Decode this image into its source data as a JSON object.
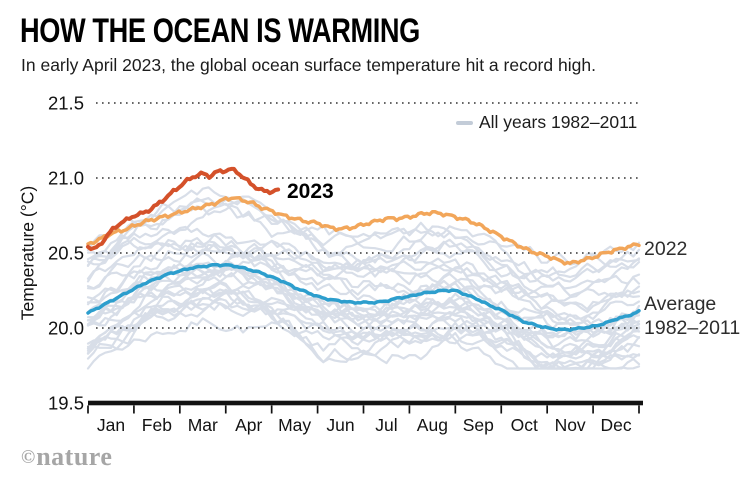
{
  "header": {
    "title": "HOW THE OCEAN IS WARMING",
    "subtitle": "In early April 2023, the global ocean surface temperature hit a record high."
  },
  "legend": {
    "label": "All years 1982–2011"
  },
  "annotations": {
    "label_2023": "2023",
    "label_2022": "2022",
    "label_avg_1": "Average",
    "label_avg_2": "1982–2011"
  },
  "footer": {
    "copyright": "©",
    "brand": "nature"
  },
  "colors": {
    "line_2023": "#d4512a",
    "line_2022": "#f2a65a",
    "line_avg": "#2d9ecd",
    "all_years": "#d8dee8",
    "legend_swatch": "#c3ccd8",
    "grid_dots": "#333333",
    "axis": "#121212",
    "text": "#131313"
  },
  "chart_data": {
    "type": "line",
    "title": "HOW THE OCEAN IS WARMING",
    "subtitle": "In early April 2023, the global ocean surface temperature hit a record high.",
    "xlabel": "",
    "ylabel": "Temperature (°C)",
    "x_unit": "month of year (0 = 1 Jan, 12 = 31 Dec)",
    "xlim": [
      0,
      12
    ],
    "ylim": [
      19.5,
      21.5
    ],
    "yticks": [
      21.5,
      21.0,
      20.5,
      20.0,
      19.5
    ],
    "ytick_labels": [
      "21.5",
      "21.0",
      "20.5",
      "20.0",
      "19.5"
    ],
    "x_months": [
      "Jan",
      "Feb",
      "Mar",
      "Apr",
      "May",
      "Jun",
      "Jul",
      "Aug",
      "Sep",
      "Oct",
      "Nov",
      "Dec"
    ],
    "grid": "horizontal dotted lines at each 0.5 °C; bold solid baseline at 19.5",
    "legend_position": "top-right inside plot",
    "series": [
      {
        "name": "Average 1982–2011",
        "color": "#2d9ecd",
        "width": 3.5,
        "points": [
          [
            0,
            20.1
          ],
          [
            0.25,
            20.14
          ],
          [
            0.5,
            20.18
          ],
          [
            0.75,
            20.22
          ],
          [
            1.0,
            20.26
          ],
          [
            1.25,
            20.3
          ],
          [
            1.5,
            20.33
          ],
          [
            1.75,
            20.36
          ],
          [
            2.0,
            20.38
          ],
          [
            2.25,
            20.4
          ],
          [
            2.5,
            20.41
          ],
          [
            2.75,
            20.42
          ],
          [
            3.0,
            20.42
          ],
          [
            3.25,
            20.41
          ],
          [
            3.5,
            20.39
          ],
          [
            3.75,
            20.37
          ],
          [
            4.0,
            20.34
          ],
          [
            4.25,
            20.31
          ],
          [
            4.5,
            20.27
          ],
          [
            4.75,
            20.24
          ],
          [
            5.0,
            20.21
          ],
          [
            5.25,
            20.19
          ],
          [
            5.5,
            20.18
          ],
          [
            5.75,
            20.17
          ],
          [
            6.0,
            20.17
          ],
          [
            6.25,
            20.17
          ],
          [
            6.5,
            20.18
          ],
          [
            6.75,
            20.2
          ],
          [
            7.0,
            20.21
          ],
          [
            7.25,
            20.23
          ],
          [
            7.5,
            20.24
          ],
          [
            7.75,
            20.25
          ],
          [
            8.0,
            20.25
          ],
          [
            8.25,
            20.22
          ],
          [
            8.5,
            20.19
          ],
          [
            8.75,
            20.15
          ],
          [
            9.0,
            20.12
          ],
          [
            9.25,
            20.08
          ],
          [
            9.5,
            20.04
          ],
          [
            9.75,
            20.02
          ],
          [
            10.0,
            20.0
          ],
          [
            10.25,
            19.99
          ],
          [
            10.5,
            19.99
          ],
          [
            10.75,
            20.0
          ],
          [
            11.0,
            20.01
          ],
          [
            11.25,
            20.03
          ],
          [
            11.5,
            20.06
          ],
          [
            11.75,
            20.08
          ],
          [
            12,
            20.11
          ]
        ]
      },
      {
        "name": "2022",
        "color": "#f2a65a",
        "width": 3.5,
        "points": [
          [
            0,
            20.56
          ],
          [
            0.25,
            20.59
          ],
          [
            0.5,
            20.63
          ],
          [
            0.75,
            20.65
          ],
          [
            1.0,
            20.68
          ],
          [
            1.25,
            20.71
          ],
          [
            1.5,
            20.73
          ],
          [
            1.75,
            20.75
          ],
          [
            2.0,
            20.77
          ],
          [
            2.25,
            20.79
          ],
          [
            2.5,
            20.81
          ],
          [
            2.75,
            20.83
          ],
          [
            3.0,
            20.86
          ],
          [
            3.15,
            20.87
          ],
          [
            3.4,
            20.85
          ],
          [
            3.6,
            20.83
          ],
          [
            3.8,
            20.8
          ],
          [
            4.0,
            20.78
          ],
          [
            4.25,
            20.75
          ],
          [
            4.5,
            20.73
          ],
          [
            4.75,
            20.71
          ],
          [
            5.0,
            20.7
          ],
          [
            5.25,
            20.67
          ],
          [
            5.5,
            20.66
          ],
          [
            5.75,
            20.67
          ],
          [
            6.0,
            20.69
          ],
          [
            6.25,
            20.71
          ],
          [
            6.5,
            20.73
          ],
          [
            6.75,
            20.73
          ],
          [
            7.0,
            20.74
          ],
          [
            7.25,
            20.76
          ],
          [
            7.5,
            20.77
          ],
          [
            7.75,
            20.76
          ],
          [
            8.0,
            20.74
          ],
          [
            8.25,
            20.72
          ],
          [
            8.5,
            20.69
          ],
          [
            8.75,
            20.65
          ],
          [
            9.0,
            20.61
          ],
          [
            9.25,
            20.57
          ],
          [
            9.5,
            20.53
          ],
          [
            9.75,
            20.5
          ],
          [
            10.0,
            20.48
          ],
          [
            10.25,
            20.45
          ],
          [
            10.5,
            20.43
          ],
          [
            10.75,
            20.45
          ],
          [
            11.0,
            20.47
          ],
          [
            11.25,
            20.5
          ],
          [
            11.5,
            20.52
          ],
          [
            11.75,
            20.54
          ],
          [
            12,
            20.56
          ]
        ]
      },
      {
        "name": "2023",
        "color": "#d4512a",
        "width": 4,
        "points": [
          [
            0,
            20.55
          ],
          [
            0.1,
            20.52
          ],
          [
            0.25,
            20.55
          ],
          [
            0.4,
            20.61
          ],
          [
            0.55,
            20.66
          ],
          [
            0.7,
            20.7
          ],
          [
            0.85,
            20.72
          ],
          [
            1.0,
            20.75
          ],
          [
            1.15,
            20.76
          ],
          [
            1.3,
            20.78
          ],
          [
            1.5,
            20.82
          ],
          [
            1.7,
            20.87
          ],
          [
            1.9,
            20.92
          ],
          [
            2.1,
            20.97
          ],
          [
            2.3,
            21.01
          ],
          [
            2.5,
            21.03
          ],
          [
            2.65,
            21.01
          ],
          [
            2.8,
            21.04
          ],
          [
            3.0,
            21.05
          ],
          [
            3.1,
            21.06
          ],
          [
            3.25,
            21.04
          ],
          [
            3.4,
            21.0
          ],
          [
            3.55,
            20.96
          ],
          [
            3.7,
            20.93
          ],
          [
            3.85,
            20.91
          ],
          [
            4.0,
            20.91
          ],
          [
            4.15,
            20.92
          ]
        ]
      }
    ],
    "background": {
      "name": "All years 1982–2011",
      "description": "30 individual annual traces for 1982–2011 drawn as a light grey band",
      "color": "#d8dee8",
      "count": 30,
      "width": 2.2,
      "offset_range": [
        -0.3,
        0.45
      ],
      "noise_step": 0.09,
      "clamp": [
        19.73,
        20.97
      ],
      "seed": 7
    }
  }
}
